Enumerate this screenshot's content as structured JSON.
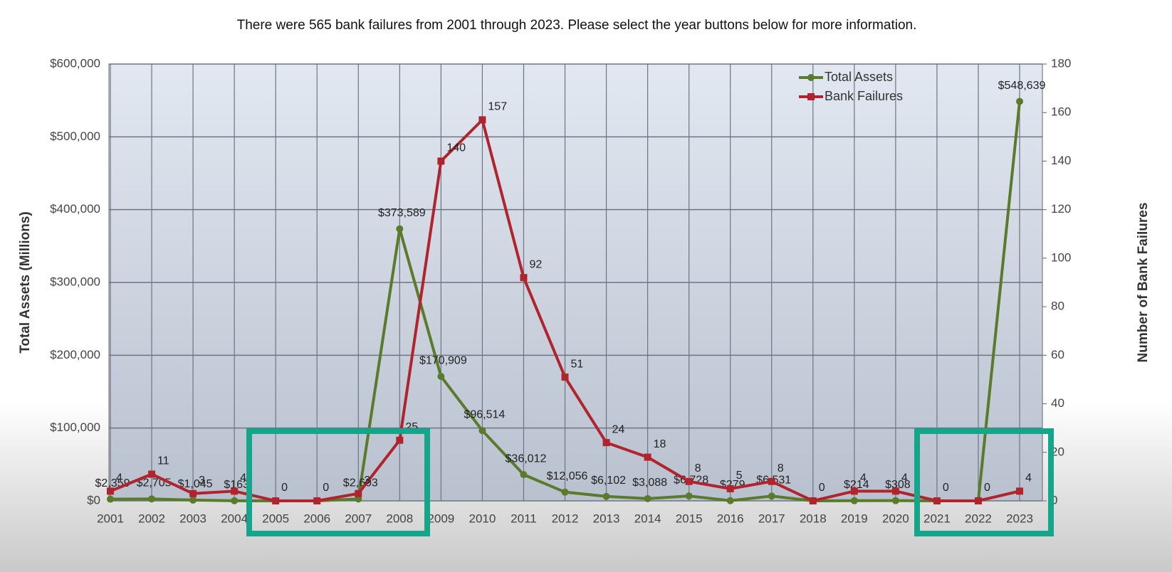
{
  "chart_data": {
    "type": "line",
    "title": "There were 565 bank failures from 2001 through 2023. Please select the year buttons below for more information.",
    "y_label": "Total Assets (Millions)",
    "y2_label": "Number of Bank Failures",
    "categories": [
      "2001",
      "2002",
      "2003",
      "2004",
      "2005",
      "2006",
      "2007",
      "2008",
      "2009",
      "2010",
      "2011",
      "2012",
      "2013",
      "2014",
      "2015",
      "2016",
      "2017",
      "2018",
      "2019",
      "2020",
      "2021",
      "2022",
      "2023"
    ],
    "series": [
      {
        "name": "Total Assets",
        "color": "#5a7a2c",
        "marker": "circle",
        "values": [
          2359,
          2705,
          1045,
          163,
          0,
          0,
          2603,
          373589,
          170909,
          96514,
          36012,
          12056,
          6102,
          3088,
          6728,
          279,
          6531,
          0,
          214,
          308,
          0,
          0,
          548639
        ],
        "value_labels": [
          "$2,359",
          "$2,705",
          "$1,045",
          "$163",
          null,
          null,
          "$2,603",
          "$373,589",
          "$170,909",
          "$96,514",
          "$36,012",
          "$12,056",
          "$6,102",
          "$3,088",
          "$6,728",
          "$279",
          "$6,531",
          null,
          "$214",
          "$308",
          null,
          null,
          "$548,639"
        ]
      },
      {
        "name": "Bank Failures",
        "color": "#b0242e",
        "marker": "square",
        "axis": "y2",
        "values": [
          4,
          11,
          3,
          4,
          0,
          0,
          3,
          25,
          140,
          157,
          92,
          51,
          24,
          18,
          8,
          5,
          8,
          0,
          4,
          4,
          0,
          0,
          4
        ]
      }
    ],
    "ylim": [
      0,
      600000
    ],
    "yticks": [
      {
        "value": 0,
        "label": "$0"
      },
      {
        "value": 100000,
        "label": "$100,000"
      },
      {
        "value": 200000,
        "label": "$200,000"
      },
      {
        "value": 300000,
        "label": "$300,000"
      },
      {
        "value": 400000,
        "label": "$400,000"
      },
      {
        "value": 500000,
        "label": "$500,000"
      },
      {
        "value": 600000,
        "label": "$600,000"
      }
    ],
    "y2lim": [
      0,
      180
    ],
    "y2ticks": [
      0,
      20,
      40,
      60,
      80,
      100,
      120,
      140,
      160,
      180
    ],
    "grid": true,
    "legend": "top-right"
  }
}
